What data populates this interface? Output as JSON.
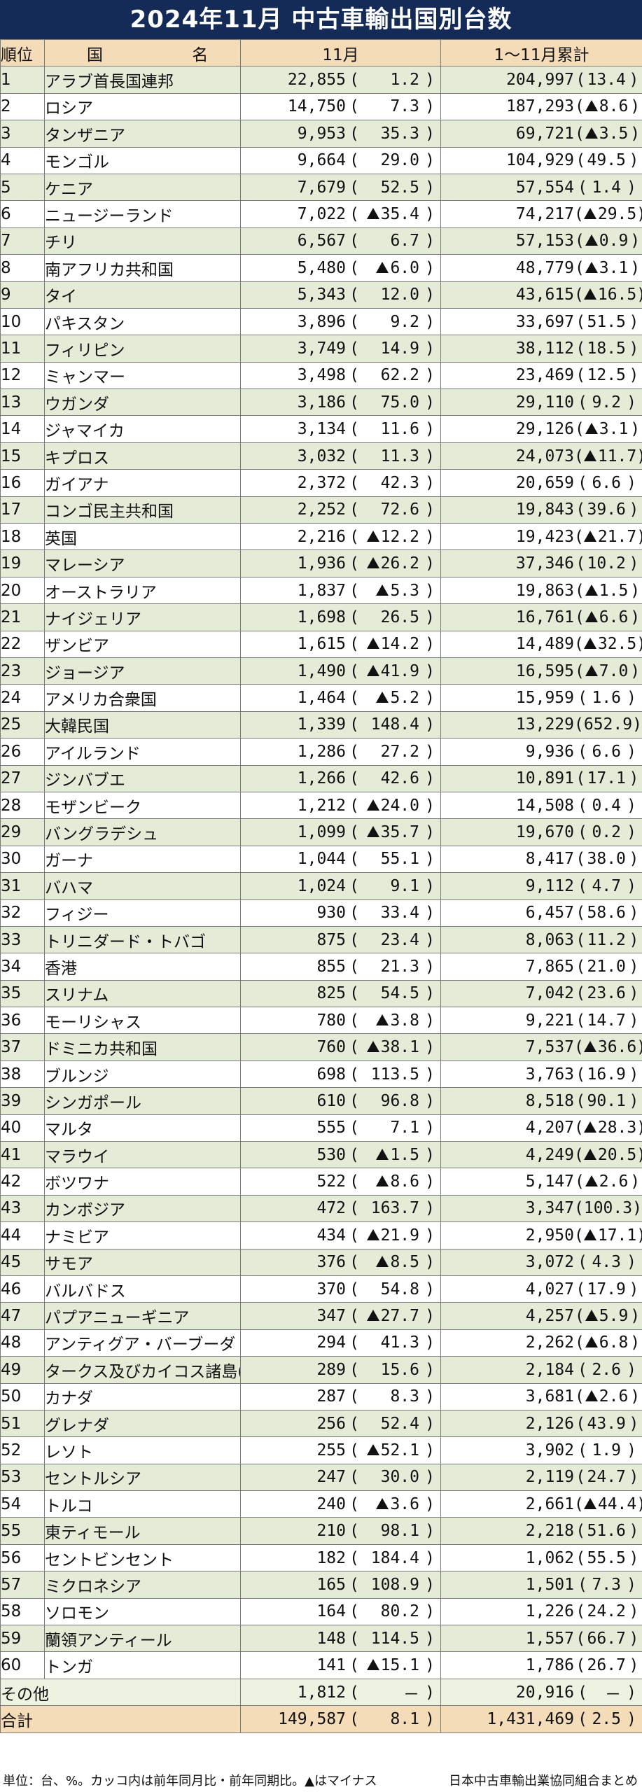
{
  "title": "2024年11月 中古車輸出国別台数",
  "header": {
    "rank": "順位",
    "name": "国 名",
    "month": "11月",
    "cumulative": "1～11月累計"
  },
  "rows": [
    {
      "rank": "1",
      "name": "アラブ首長国連邦",
      "m": "22,855",
      "mp": "1.2",
      "mneg": false,
      "c": "204,997",
      "cp": "13.4",
      "cneg": false
    },
    {
      "rank": "2",
      "name": "ロシア",
      "m": "14,750",
      "mp": "7.3",
      "mneg": false,
      "c": "187,293",
      "cp": "8.6",
      "cneg": true
    },
    {
      "rank": "3",
      "name": "タンザニア",
      "m": "9,953",
      "mp": "35.3",
      "mneg": false,
      "c": "69,721",
      "cp": "3.5",
      "cneg": true
    },
    {
      "rank": "4",
      "name": "モンゴル",
      "m": "9,664",
      "mp": "29.0",
      "mneg": false,
      "c": "104,929",
      "cp": "49.5",
      "cneg": false
    },
    {
      "rank": "5",
      "name": "ケニア",
      "m": "7,679",
      "mp": "52.5",
      "mneg": false,
      "c": "57,554",
      "cp": "1.4",
      "cneg": false
    },
    {
      "rank": "6",
      "name": "ニュージーランド",
      "m": "7,022",
      "mp": "35.4",
      "mneg": true,
      "c": "74,217",
      "cp": "29.5",
      "cneg": true
    },
    {
      "rank": "7",
      "name": "チリ",
      "m": "6,567",
      "mp": "6.7",
      "mneg": false,
      "c": "57,153",
      "cp": "0.9",
      "cneg": true
    },
    {
      "rank": "8",
      "name": "南アフリカ共和国",
      "m": "5,480",
      "mp": "6.0",
      "mneg": true,
      "c": "48,779",
      "cp": "3.1",
      "cneg": true
    },
    {
      "rank": "9",
      "name": "タイ",
      "m": "5,343",
      "mp": "12.0",
      "mneg": false,
      "c": "43,615",
      "cp": "16.5",
      "cneg": true
    },
    {
      "rank": "10",
      "name": "パキスタン",
      "m": "3,896",
      "mp": "9.2",
      "mneg": false,
      "c": "33,697",
      "cp": "51.5",
      "cneg": false
    },
    {
      "rank": "11",
      "name": "フィリピン",
      "m": "3,749",
      "mp": "14.9",
      "mneg": false,
      "c": "38,112",
      "cp": "18.5",
      "cneg": false
    },
    {
      "rank": "12",
      "name": "ミャンマー",
      "m": "3,498",
      "mp": "62.2",
      "mneg": false,
      "c": "23,469",
      "cp": "12.5",
      "cneg": false
    },
    {
      "rank": "13",
      "name": "ウガンダ",
      "m": "3,186",
      "mp": "75.0",
      "mneg": false,
      "c": "29,110",
      "cp": "9.2",
      "cneg": false
    },
    {
      "rank": "14",
      "name": "ジャマイカ",
      "m": "3,134",
      "mp": "11.6",
      "mneg": false,
      "c": "29,126",
      "cp": "3.1",
      "cneg": true
    },
    {
      "rank": "15",
      "name": "キプロス",
      "m": "3,032",
      "mp": "11.3",
      "mneg": false,
      "c": "24,073",
      "cp": "11.7",
      "cneg": true
    },
    {
      "rank": "16",
      "name": "ガイアナ",
      "m": "2,372",
      "mp": "42.3",
      "mneg": false,
      "c": "20,659",
      "cp": "6.6",
      "cneg": false
    },
    {
      "rank": "17",
      "name": "コンゴ民主共和国",
      "m": "2,252",
      "mp": "72.6",
      "mneg": false,
      "c": "19,843",
      "cp": "39.6",
      "cneg": false
    },
    {
      "rank": "18",
      "name": "英国",
      "m": "2,216",
      "mp": "12.2",
      "mneg": true,
      "c": "19,423",
      "cp": "21.7",
      "cneg": true
    },
    {
      "rank": "19",
      "name": "マレーシア",
      "m": "1,936",
      "mp": "26.2",
      "mneg": true,
      "c": "37,346",
      "cp": "10.2",
      "cneg": false
    },
    {
      "rank": "20",
      "name": "オーストラリア",
      "m": "1,837",
      "mp": "5.3",
      "mneg": true,
      "c": "19,863",
      "cp": "1.5",
      "cneg": true
    },
    {
      "rank": "21",
      "name": "ナイジェリア",
      "m": "1,698",
      "mp": "26.5",
      "mneg": false,
      "c": "16,761",
      "cp": "6.6",
      "cneg": true
    },
    {
      "rank": "22",
      "name": "ザンビア",
      "m": "1,615",
      "mp": "14.2",
      "mneg": true,
      "c": "14,489",
      "cp": "32.5",
      "cneg": true
    },
    {
      "rank": "23",
      "name": "ジョージア",
      "m": "1,490",
      "mp": "41.9",
      "mneg": true,
      "c": "16,595",
      "cp": "7.0",
      "cneg": true
    },
    {
      "rank": "24",
      "name": "アメリカ合衆国",
      "m": "1,464",
      "mp": "5.2",
      "mneg": true,
      "c": "15,959",
      "cp": "1.6",
      "cneg": false
    },
    {
      "rank": "25",
      "name": "大韓民国",
      "m": "1,339",
      "mp": "148.4",
      "mneg": false,
      "c": "13,229",
      "cp": "652.9",
      "cneg": false
    },
    {
      "rank": "26",
      "name": "アイルランド",
      "m": "1,286",
      "mp": "27.2",
      "mneg": false,
      "c": "9,936",
      "cp": "6.6",
      "cneg": false
    },
    {
      "rank": "27",
      "name": "ジンバブエ",
      "m": "1,266",
      "mp": "42.6",
      "mneg": false,
      "c": "10,891",
      "cp": "17.1",
      "cneg": false
    },
    {
      "rank": "28",
      "name": "モザンビーク",
      "m": "1,212",
      "mp": "24.0",
      "mneg": true,
      "c": "14,508",
      "cp": "0.4",
      "cneg": false
    },
    {
      "rank": "29",
      "name": "バングラデシュ",
      "m": "1,099",
      "mp": "35.7",
      "mneg": true,
      "c": "19,670",
      "cp": "0.2",
      "cneg": false
    },
    {
      "rank": "30",
      "name": "ガーナ",
      "m": "1,044",
      "mp": "55.1",
      "mneg": false,
      "c": "8,417",
      "cp": "38.0",
      "cneg": false
    },
    {
      "rank": "31",
      "name": "バハマ",
      "m": "1,024",
      "mp": "9.1",
      "mneg": false,
      "c": "9,112",
      "cp": "4.7",
      "cneg": false
    },
    {
      "rank": "32",
      "name": "フィジー",
      "m": "930",
      "mp": "33.4",
      "mneg": false,
      "c": "6,457",
      "cp": "58.6",
      "cneg": false
    },
    {
      "rank": "33",
      "name": "トリニダード・トバゴ",
      "m": "875",
      "mp": "23.4",
      "mneg": false,
      "c": "8,063",
      "cp": "11.2",
      "cneg": false
    },
    {
      "rank": "34",
      "name": "香港",
      "m": "855",
      "mp": "21.3",
      "mneg": false,
      "c": "7,865",
      "cp": "21.0",
      "cneg": false
    },
    {
      "rank": "35",
      "name": "スリナム",
      "m": "825",
      "mp": "54.5",
      "mneg": false,
      "c": "7,042",
      "cp": "23.6",
      "cneg": false
    },
    {
      "rank": "36",
      "name": "モーリシャス",
      "m": "780",
      "mp": "3.8",
      "mneg": true,
      "c": "9,221",
      "cp": "14.7",
      "cneg": false
    },
    {
      "rank": "37",
      "name": "ドミニカ共和国",
      "m": "760",
      "mp": "38.1",
      "mneg": true,
      "c": "7,537",
      "cp": "36.6",
      "cneg": true
    },
    {
      "rank": "38",
      "name": "ブルンジ",
      "m": "698",
      "mp": "113.5",
      "mneg": false,
      "c": "3,763",
      "cp": "16.9",
      "cneg": false
    },
    {
      "rank": "39",
      "name": "シンガポール",
      "m": "610",
      "mp": "96.8",
      "mneg": false,
      "c": "8,518",
      "cp": "90.1",
      "cneg": false
    },
    {
      "rank": "40",
      "name": "マルタ",
      "m": "555",
      "mp": "7.1",
      "mneg": false,
      "c": "4,207",
      "cp": "28.3",
      "cneg": true
    },
    {
      "rank": "41",
      "name": "マラウイ",
      "m": "530",
      "mp": "1.5",
      "mneg": true,
      "c": "4,249",
      "cp": "20.5",
      "cneg": true
    },
    {
      "rank": "42",
      "name": "ボツワナ",
      "m": "522",
      "mp": "8.6",
      "mneg": true,
      "c": "5,147",
      "cp": "2.6",
      "cneg": true
    },
    {
      "rank": "43",
      "name": "カンボジア",
      "m": "472",
      "mp": "163.7",
      "mneg": false,
      "c": "3,347",
      "cp": "100.3",
      "cneg": false
    },
    {
      "rank": "44",
      "name": "ナミビア",
      "m": "434",
      "mp": "21.9",
      "mneg": true,
      "c": "2,950",
      "cp": "17.1",
      "cneg": true
    },
    {
      "rank": "45",
      "name": "サモア",
      "m": "376",
      "mp": "8.5",
      "mneg": true,
      "c": "3,072",
      "cp": "4.3",
      "cneg": false
    },
    {
      "rank": "46",
      "name": "バルバドス",
      "m": "370",
      "mp": "54.8",
      "mneg": false,
      "c": "4,027",
      "cp": "17.9",
      "cneg": false
    },
    {
      "rank": "47",
      "name": "パプアニューギニア",
      "m": "347",
      "mp": "27.7",
      "mneg": true,
      "c": "4,257",
      "cp": "5.9",
      "cneg": true
    },
    {
      "rank": "48",
      "name": "アンティグア・バーブーダ",
      "m": "294",
      "mp": "41.3",
      "mneg": false,
      "c": "2,262",
      "cp": "6.8",
      "cneg": true
    },
    {
      "rank": "49",
      "name": "タークス及びカイコス諸島(英)",
      "m": "289",
      "mp": "15.6",
      "mneg": false,
      "c": "2,184",
      "cp": "2.6",
      "cneg": false
    },
    {
      "rank": "50",
      "name": "カナダ",
      "m": "287",
      "mp": "8.3",
      "mneg": false,
      "c": "3,681",
      "cp": "2.6",
      "cneg": true
    },
    {
      "rank": "51",
      "name": "グレナダ",
      "m": "256",
      "mp": "52.4",
      "mneg": false,
      "c": "2,126",
      "cp": "43.9",
      "cneg": false
    },
    {
      "rank": "52",
      "name": "レソト",
      "m": "255",
      "mp": "52.1",
      "mneg": true,
      "c": "3,902",
      "cp": "1.9",
      "cneg": false
    },
    {
      "rank": "53",
      "name": "セントルシア",
      "m": "247",
      "mp": "30.0",
      "mneg": false,
      "c": "2,119",
      "cp": "24.7",
      "cneg": false
    },
    {
      "rank": "54",
      "name": "トルコ",
      "m": "240",
      "mp": "3.6",
      "mneg": true,
      "c": "2,661",
      "cp": "44.4",
      "cneg": true
    },
    {
      "rank": "55",
      "name": "東ティモール",
      "m": "210",
      "mp": "98.1",
      "mneg": false,
      "c": "2,218",
      "cp": "51.6",
      "cneg": false
    },
    {
      "rank": "56",
      "name": "セントビンセント",
      "m": "182",
      "mp": "184.4",
      "mneg": false,
      "c": "1,062",
      "cp": "55.5",
      "cneg": false
    },
    {
      "rank": "57",
      "name": "ミクロネシア",
      "m": "165",
      "mp": "108.9",
      "mneg": false,
      "c": "1,501",
      "cp": "7.3",
      "cneg": false
    },
    {
      "rank": "58",
      "name": "ソロモン",
      "m": "164",
      "mp": "80.2",
      "mneg": false,
      "c": "1,226",
      "cp": "24.2",
      "cneg": false
    },
    {
      "rank": "59",
      "name": "蘭領アンティール",
      "m": "148",
      "mp": "114.5",
      "mneg": false,
      "c": "1,557",
      "cp": "66.7",
      "cneg": false
    },
    {
      "rank": "60",
      "name": "トンガ",
      "m": "141",
      "mp": "15.1",
      "mneg": true,
      "c": "1,786",
      "cp": "26.7",
      "cneg": false
    }
  ],
  "other": {
    "label": "その他",
    "m": "1,812",
    "mp": "－",
    "c": "20,916",
    "cp": "－"
  },
  "total": {
    "label": "合計",
    "m": "149,587",
    "mp": "8.1",
    "c": "1,431,469",
    "cp": "2.5"
  },
  "footer": {
    "note": "単位：台、%。カッコ内は前年同月比・前年同期比。▲はマイナス",
    "source": "日本中古車輸出業協同組合まとめ"
  }
}
